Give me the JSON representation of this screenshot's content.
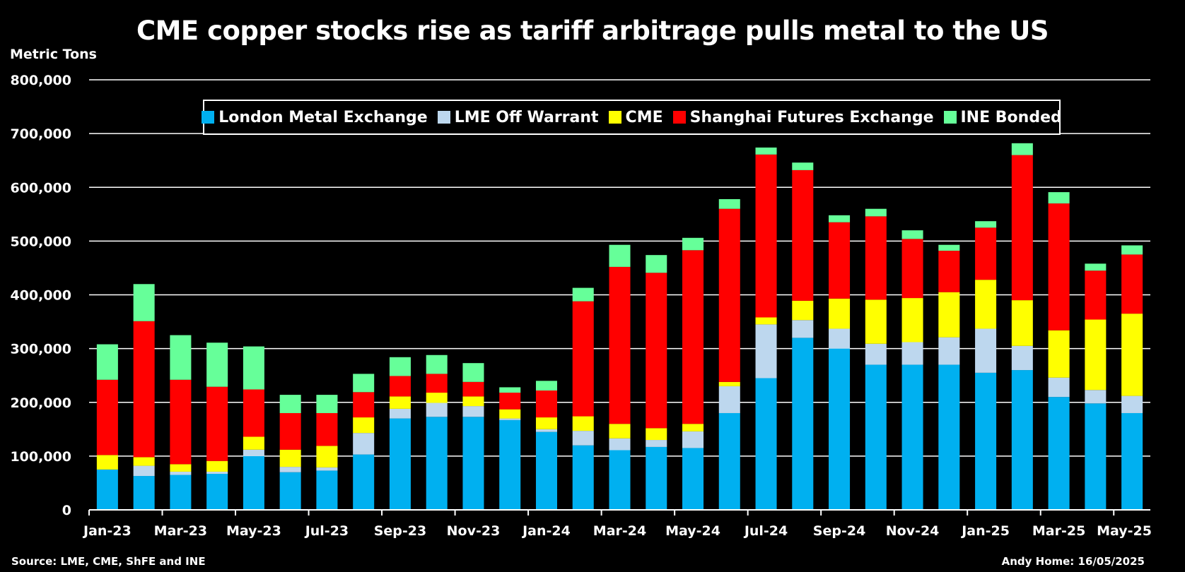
{
  "chart_data": {
    "type": "bar",
    "stacked": true,
    "title": "CME copper stocks rise as tariff arbitrage pulls metal to the US",
    "ylabel": "Metric Tons",
    "xlabel": "",
    "ylim": [
      0,
      800000
    ],
    "yticks": [
      0,
      100000,
      200000,
      300000,
      400000,
      500000,
      600000,
      700000,
      800000
    ],
    "ytick_labels": [
      "0",
      "100,000",
      "200,000",
      "300,000",
      "400,000",
      "500,000",
      "600,000",
      "700,000",
      "800,000"
    ],
    "grid": true,
    "legend_position": "top-center",
    "categories": [
      "Jan-23",
      "Feb-23",
      "Mar-23",
      "Apr-23",
      "May-23",
      "Jun-23",
      "Jul-23",
      "Aug-23",
      "Sep-23",
      "Oct-23",
      "Nov-23",
      "Dec-23",
      "Jan-24",
      "Feb-24",
      "Mar-24",
      "Apr-24",
      "May-24",
      "Jun-24",
      "Jul-24",
      "Aug-24",
      "Sep-24",
      "Oct-24",
      "Nov-24",
      "Dec-24",
      "Jan-25",
      "Feb-25",
      "Mar-25",
      "Apr-25",
      "May-25"
    ],
    "x_tick_labels": [
      "Jan-23",
      "Mar-23",
      "May-23",
      "Jul-23",
      "Sep-23",
      "Nov-23",
      "Jan-24",
      "Mar-24",
      "May-24",
      "Jul-24",
      "Sep-24",
      "Nov-24",
      "Jan-25",
      "Mar-25",
      "May-25"
    ],
    "series": [
      {
        "name": "London Metal Exchange",
        "color": "#00B0F0",
        "values": [
          75000,
          63000,
          65000,
          67000,
          100000,
          70000,
          73000,
          103000,
          170000,
          173000,
          173000,
          167000,
          145000,
          120000,
          111000,
          117000,
          115000,
          180000,
          245000,
          320000,
          300000,
          270000,
          270000,
          270000,
          255000,
          260000,
          210000,
          198000,
          180000
        ]
      },
      {
        "name": "LME Off Warrant",
        "color": "#BDD7EE",
        "values": [
          0,
          19000,
          6000,
          4000,
          12000,
          10000,
          6000,
          40000,
          18000,
          26000,
          20000,
          3000,
          5000,
          27000,
          22000,
          13000,
          31000,
          50000,
          100000,
          33000,
          37000,
          39000,
          42000,
          51000,
          82000,
          45000,
          36000,
          25000,
          32000
        ]
      },
      {
        "name": "CME",
        "color": "#FFFF00",
        "values": [
          27000,
          16000,
          14000,
          20000,
          24000,
          32000,
          40000,
          29000,
          23000,
          19000,
          18000,
          17000,
          22000,
          27000,
          27000,
          22000,
          14000,
          8000,
          13000,
          36000,
          56000,
          82000,
          82000,
          84000,
          91000,
          85000,
          88000,
          131000,
          153000
        ]
      },
      {
        "name": "Shanghai Futures Exchange",
        "color": "#FF0000",
        "values": [
          140000,
          253000,
          157000,
          138000,
          88000,
          68000,
          61000,
          47000,
          38000,
          35000,
          27000,
          31000,
          50000,
          214000,
          292000,
          289000,
          323000,
          322000,
          303000,
          243000,
          142000,
          155000,
          110000,
          77000,
          97000,
          270000,
          236000,
          91000,
          110000
        ]
      },
      {
        "name": "INE Bonded",
        "color": "#66FF99",
        "values": [
          66000,
          69000,
          83000,
          82000,
          80000,
          34000,
          34000,
          34000,
          35000,
          35000,
          35000,
          10000,
          18000,
          25000,
          41000,
          33000,
          23000,
          18000,
          13000,
          14000,
          13000,
          14000,
          16000,
          11000,
          12000,
          22000,
          21000,
          13000,
          17000
        ]
      }
    ],
    "source_note": "Source: LME, CME, ShFE and INE",
    "author_note": "Andy Home: 16/05/2025"
  }
}
